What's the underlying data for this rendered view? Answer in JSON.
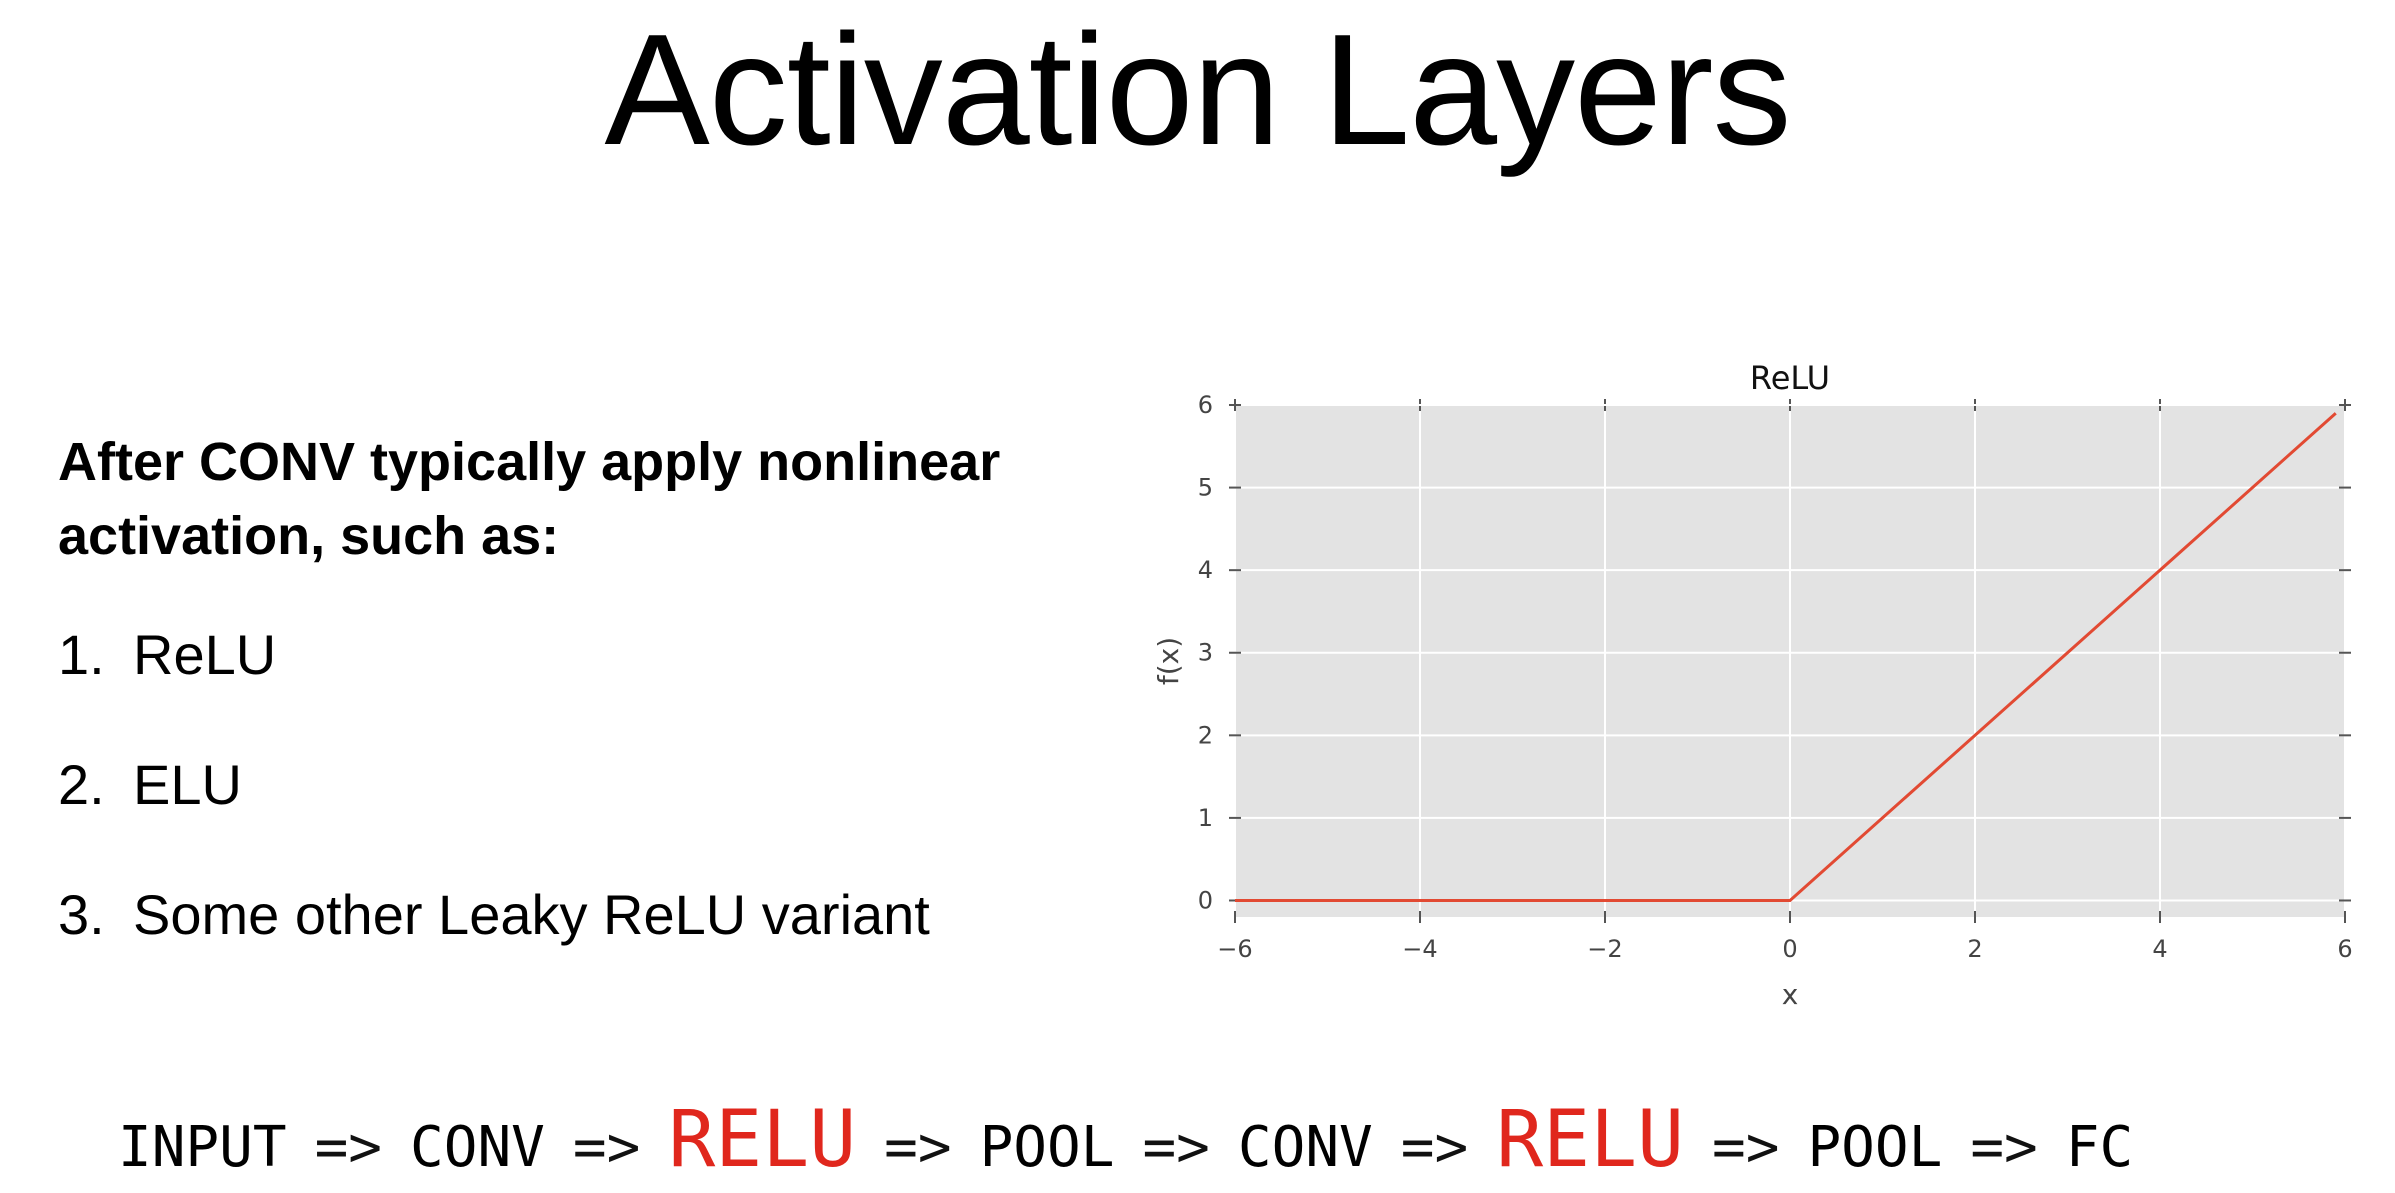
{
  "slide": {
    "title": "Activation Layers",
    "intro": "After CONV typically apply nonlinear activation, such as:",
    "list": [
      {
        "num": "1.",
        "text": "ReLU"
      },
      {
        "num": "2.",
        "text": "ELU"
      },
      {
        "num": "3.",
        "text": "Some other Leaky ReLU variant"
      }
    ],
    "pipeline": [
      {
        "text": "INPUT",
        "highlight": false
      },
      {
        "text": "=>",
        "highlight": false
      },
      {
        "text": "CONV",
        "highlight": false
      },
      {
        "text": "=>",
        "highlight": false
      },
      {
        "text": "RELU",
        "highlight": true
      },
      {
        "text": "=>",
        "highlight": false
      },
      {
        "text": "POOL",
        "highlight": false
      },
      {
        "text": "=>",
        "highlight": false
      },
      {
        "text": "CONV",
        "highlight": false
      },
      {
        "text": "=>",
        "highlight": false
      },
      {
        "text": "RELU",
        "highlight": true
      },
      {
        "text": "=>",
        "highlight": false
      },
      {
        "text": "POOL",
        "highlight": false
      },
      {
        "text": "=>",
        "highlight": false
      },
      {
        "text": "FC",
        "highlight": false
      }
    ],
    "highlight_color": "#e0271d"
  },
  "chart_data": {
    "type": "line",
    "title": "ReLU",
    "xlabel": "x",
    "ylabel": "f(x)",
    "xlim": [
      -6,
      6
    ],
    "ylim": [
      -0.2,
      6
    ],
    "xticks": [
      -6,
      -4,
      -2,
      0,
      2,
      4,
      6
    ],
    "xtick_labels": [
      "−6",
      "−4",
      "−2",
      "0",
      "2",
      "4",
      "6"
    ],
    "yticks": [
      0,
      1,
      2,
      3,
      4,
      5,
      6
    ],
    "ytick_labels": [
      "0",
      "1",
      "2",
      "3",
      "4",
      "5",
      "6"
    ],
    "grid": true,
    "background": "#e3e3e3",
    "series": [
      {
        "color": "#e24a33",
        "x": [
          -6,
          0,
          5.9
        ],
        "y": [
          0,
          0,
          5.9
        ]
      }
    ]
  }
}
